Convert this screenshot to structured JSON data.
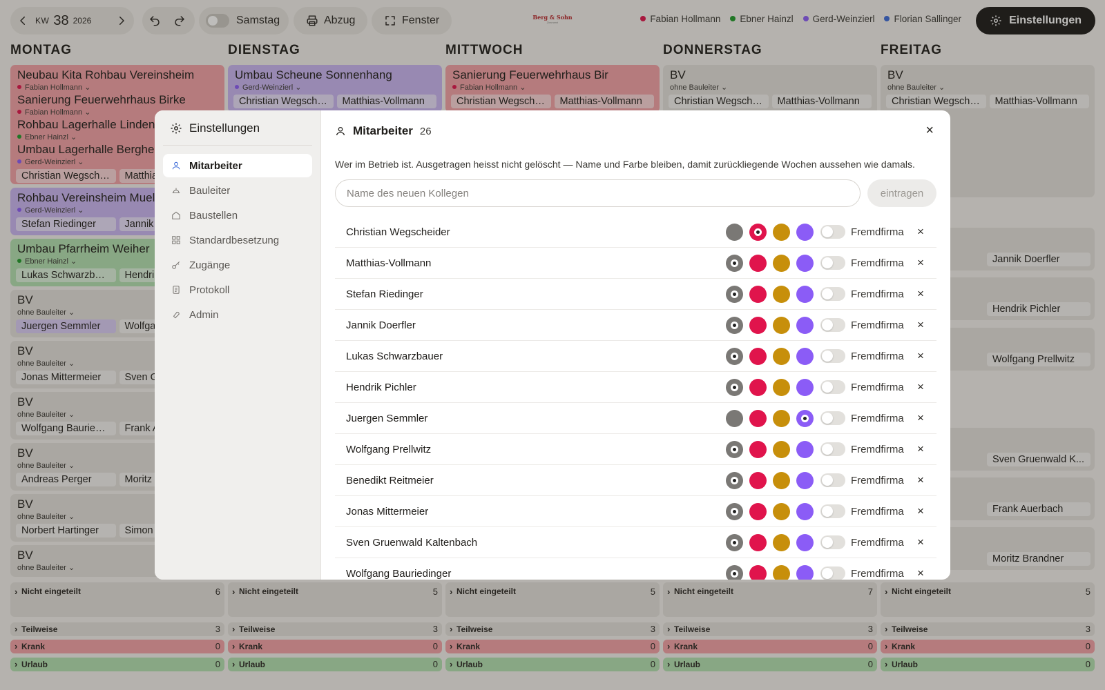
{
  "toolbar": {
    "kw_label": "KW",
    "kw_number": "38",
    "kw_year": "2026",
    "saturday_label": "Samstag",
    "print_label": "Abzug",
    "window_label": "Fenster",
    "settings_label": "Einstellungen",
    "logo_title": "Berg & Sohn",
    "logo_sub": "Zimmerei"
  },
  "legend": [
    {
      "name": "Fabian Hollmann",
      "color": "#e0144c"
    },
    {
      "name": "Ebner Hainzl",
      "color": "#1f9a2a"
    },
    {
      "name": "Gerd-Weinzierl",
      "color": "#8b5cf6"
    },
    {
      "name": "Florian Sallinger",
      "color": "#3c6bd8"
    }
  ],
  "days": [
    {
      "name": "MONTAG",
      "counts": {
        "nicht": "6",
        "teil": "3",
        "krank": "0",
        "urlaub": "0"
      }
    },
    {
      "name": "DIENSTAG",
      "counts": {
        "nicht": "5",
        "teil": "3",
        "krank": "0",
        "urlaub": "0"
      }
    },
    {
      "name": "MITTWOCH",
      "counts": {
        "nicht": "5",
        "teil": "3",
        "krank": "0",
        "urlaub": "0"
      }
    },
    {
      "name": "DONNERSTAG",
      "counts": {
        "nicht": "7",
        "teil": "3",
        "krank": "0",
        "urlaub": "0"
      }
    },
    {
      "name": "FREITAG",
      "counts": {
        "nicht": "5",
        "teil": "3",
        "krank": "0",
        "urlaub": "0"
      }
    }
  ],
  "sections": {
    "nicht": "Nicht eingeteilt",
    "teil": "Teilweise",
    "krank": "Krank",
    "urlaub": "Urlaub"
  },
  "monday_cards": [
    {
      "title": "Neubau Kita Rohbau Vereinsheim",
      "lead": "Fabian Hollmann"
    },
    {
      "title": "Sanierung Feuerwehrhaus Birke",
      "lead": "Fabian Hollmann"
    },
    {
      "title": "Rohbau Lagerhalle Linden",
      "lead": "Ebner Hainzl"
    },
    {
      "title": "Umbau Lagerhalle Berghe",
      "lead": "Gerd-Weinzierl",
      "w1": "Christian Wegsche...",
      "w2": "Matthias-Vollmann"
    },
    {
      "title": "Rohbau Vereinsheim Muel",
      "lead": "Gerd-Weinzierl",
      "w1": "Stefan Riedinger",
      "w2": "Jannik Doerfler"
    },
    {
      "title": "Umbau Pfarrheim Weiher",
      "lead": "Ebner Hainzl",
      "w1": "Lukas Schwarzbau...",
      "w2": "Hendrik Pichler"
    },
    {
      "title": "BV",
      "lead": "ohne Bauleiter",
      "w1": "Juergen Semmler",
      "w2": "Wolfgang Prellwitz"
    },
    {
      "title": "BV",
      "lead": "ohne Bauleiter",
      "w1": "Jonas Mittermeier",
      "w2": "Sven Gruenwald"
    },
    {
      "title": "BV",
      "lead": "ohne Bauleiter",
      "w1": "Wolfgang Bauriedi...",
      "w2": "Frank Auerbach"
    },
    {
      "title": "BV",
      "lead": "ohne Bauleiter",
      "w1": "Andreas Perger",
      "w2": "Moritz Brandner"
    },
    {
      "title": "BV",
      "lead": "ohne Bauleiter",
      "w1": "Norbert Hartinger",
      "w2": "Simon Eder"
    },
    {
      "title": "BV",
      "lead": "ohne Bauleiter"
    }
  ],
  "other_days_first_card": [
    {
      "title": "Umbau Scheune Sonnenhang",
      "lead": "Gerd-Weinzierl",
      "w1": "Christian Wegsche...",
      "w2": "Matthias-Vollmann"
    },
    {
      "title": "Sanierung Feuerwehrhaus Bir",
      "lead": "Fabian Hollmann",
      "w1": "Christian Wegsche...",
      "w2": "Matthias-Vollmann"
    },
    {
      "title": "BV",
      "lead": "ohne Bauleiter",
      "w1": "Christian Wegsche...",
      "w2": "Matthias-Vollmann"
    },
    {
      "title": "BV",
      "lead": "ohne Bauleiter",
      "w1": "Christian Wegsche...",
      "w2": "Matthias-Vollmann"
    }
  ],
  "friday_visible_chips": [
    "Jannik Doerfler",
    "Hendrik Pichler",
    "Wolfgang Prellwitz",
    "Sven Gruenwald K...",
    "Frank Auerbach",
    "Moritz Brandner"
  ],
  "modal": {
    "title": "Einstellungen",
    "nav": [
      {
        "label": "Mitarbeiter",
        "icon": "users-icon",
        "active": true
      },
      {
        "label": "Bauleiter",
        "icon": "helmet-icon"
      },
      {
        "label": "Baustellen",
        "icon": "house-icon"
      },
      {
        "label": "Standardbesetzung",
        "icon": "grid-icon"
      },
      {
        "label": "Zugänge",
        "icon": "key-icon"
      },
      {
        "label": "Protokoll",
        "icon": "log-icon"
      },
      {
        "label": "Admin",
        "icon": "wrench-icon"
      }
    ],
    "section_title": "Mitarbeiter",
    "count": "26",
    "description": "Wer im Betrieb ist. Ausgetragen heisst nicht gelöscht — Name und Farbe bleiben, damit zurückliegende Wochen aussehen wie damals.",
    "input_placeholder": "Name des neuen Kollegen",
    "add_label": "eintragen",
    "external_label": "Fremdfirma",
    "swatch_colors": [
      "#7a7875",
      "#e0144c",
      "#c78f0b",
      "#8b5cf6"
    ],
    "people": [
      {
        "name": "Christian Wegscheider",
        "selected": 1
      },
      {
        "name": "Matthias-Vollmann",
        "selected": 0
      },
      {
        "name": "Stefan Riedinger",
        "selected": 0
      },
      {
        "name": "Jannik Doerfler",
        "selected": 0
      },
      {
        "name": "Lukas Schwarzbauer",
        "selected": 0
      },
      {
        "name": "Hendrik Pichler",
        "selected": 0
      },
      {
        "name": "Juergen Semmler",
        "selected": 3
      },
      {
        "name": "Wolfgang Prellwitz",
        "selected": 0
      },
      {
        "name": "Benedikt Reitmeier",
        "selected": 0
      },
      {
        "name": "Jonas Mittermeier",
        "selected": 0
      },
      {
        "name": "Sven Gruenwald Kaltenbach",
        "selected": 0
      },
      {
        "name": "Wolfgang Bauriedinger",
        "selected": 0
      }
    ]
  }
}
